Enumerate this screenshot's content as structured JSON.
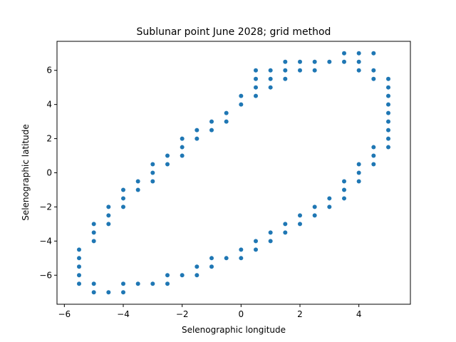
{
  "chart_data": {
    "type": "scatter",
    "title": "Sublunar point June 2028; grid method",
    "xlabel": "Selenographic longitude",
    "ylabel": "Selenographic latitude",
    "xlim": [
      -6.25,
      5.75
    ],
    "ylim": [
      -7.7,
      7.7
    ],
    "xticks": [
      -6,
      -4,
      -2,
      0,
      2,
      4
    ],
    "yticks": [
      -6,
      -4,
      -2,
      0,
      2,
      4,
      6
    ],
    "tick_labels_x": [
      "−6",
      "−4",
      "−2",
      "0",
      "2",
      "4"
    ],
    "tick_labels_y": [
      "−6",
      "−4",
      "−2",
      "0",
      "2",
      "4",
      "6"
    ],
    "grid": false,
    "marker_color": "#1f77b4",
    "series": [
      {
        "points": [
          [
            -5.5,
            -4.5
          ],
          [
            -5.5,
            -5.0
          ],
          [
            -5.5,
            -5.5
          ],
          [
            -5.5,
            -6.0
          ],
          [
            -5.5,
            -6.5
          ],
          [
            -5.0,
            -3.0
          ],
          [
            -5.0,
            -3.5
          ],
          [
            -5.0,
            -4.0
          ],
          [
            -5.0,
            -6.5
          ],
          [
            -5.0,
            -7.0
          ],
          [
            -4.5,
            -2.0
          ],
          [
            -4.5,
            -2.5
          ],
          [
            -4.5,
            -3.0
          ],
          [
            -4.5,
            -7.0
          ],
          [
            -4.0,
            -1.0
          ],
          [
            -4.0,
            -1.5
          ],
          [
            -4.0,
            -2.0
          ],
          [
            -4.0,
            -6.5
          ],
          [
            -4.0,
            -7.0
          ],
          [
            -3.5,
            -0.5
          ],
          [
            -3.5,
            -1.0
          ],
          [
            -3.5,
            -6.5
          ],
          [
            -3.0,
            0.5
          ],
          [
            -3.0,
            0.0
          ],
          [
            -3.0,
            -0.5
          ],
          [
            -3.0,
            -6.5
          ],
          [
            -2.5,
            1.0
          ],
          [
            -2.5,
            0.5
          ],
          [
            -2.5,
            -6.0
          ],
          [
            -2.5,
            -6.5
          ],
          [
            -2.0,
            2.0
          ],
          [
            -2.0,
            1.5
          ],
          [
            -2.0,
            1.0
          ],
          [
            -2.0,
            -6.0
          ],
          [
            -1.5,
            2.5
          ],
          [
            -1.5,
            2.0
          ],
          [
            -1.5,
            -5.5
          ],
          [
            -1.5,
            -6.0
          ],
          [
            -1.0,
            3.0
          ],
          [
            -1.0,
            2.5
          ],
          [
            -1.0,
            -5.0
          ],
          [
            -1.0,
            -5.5
          ],
          [
            -0.5,
            3.5
          ],
          [
            -0.5,
            3.0
          ],
          [
            -0.5,
            -5.0
          ],
          [
            0.0,
            4.5
          ],
          [
            0.0,
            4.0
          ],
          [
            0.0,
            -4.5
          ],
          [
            0.0,
            -5.0
          ],
          [
            0.5,
            6.0
          ],
          [
            0.5,
            5.5
          ],
          [
            0.5,
            5.0
          ],
          [
            0.5,
            4.5
          ],
          [
            0.5,
            -4.0
          ],
          [
            0.5,
            -4.5
          ],
          [
            1.0,
            6.0
          ],
          [
            1.0,
            5.5
          ],
          [
            1.0,
            5.0
          ],
          [
            1.0,
            -3.5
          ],
          [
            1.0,
            -4.0
          ],
          [
            1.5,
            6.5
          ],
          [
            1.5,
            6.0
          ],
          [
            1.5,
            5.5
          ],
          [
            1.5,
            -3.0
          ],
          [
            1.5,
            -3.5
          ],
          [
            2.0,
            6.5
          ],
          [
            2.0,
            6.0
          ],
          [
            2.0,
            -2.5
          ],
          [
            2.0,
            -3.0
          ],
          [
            2.5,
            6.5
          ],
          [
            2.5,
            6.0
          ],
          [
            2.5,
            -2.0
          ],
          [
            2.5,
            -2.5
          ],
          [
            3.0,
            6.5
          ],
          [
            3.0,
            -1.5
          ],
          [
            3.0,
            -2.0
          ],
          [
            3.5,
            7.0
          ],
          [
            3.5,
            6.5
          ],
          [
            3.5,
            -0.5
          ],
          [
            3.5,
            -1.0
          ],
          [
            3.5,
            -1.5
          ],
          [
            4.0,
            7.0
          ],
          [
            4.0,
            6.5
          ],
          [
            4.0,
            6.0
          ],
          [
            4.0,
            0.5
          ],
          [
            4.0,
            0.0
          ],
          [
            4.0,
            -0.5
          ],
          [
            4.5,
            7.0
          ],
          [
            4.5,
            6.0
          ],
          [
            4.5,
            5.5
          ],
          [
            4.5,
            1.5
          ],
          [
            4.5,
            1.0
          ],
          [
            4.5,
            0.5
          ],
          [
            5.0,
            5.5
          ],
          [
            5.0,
            5.0
          ],
          [
            5.0,
            4.5
          ],
          [
            5.0,
            4.0
          ],
          [
            5.0,
            3.5
          ],
          [
            5.0,
            3.0
          ],
          [
            5.0,
            2.5
          ],
          [
            5.0,
            2.0
          ],
          [
            5.0,
            1.5
          ]
        ]
      }
    ]
  }
}
